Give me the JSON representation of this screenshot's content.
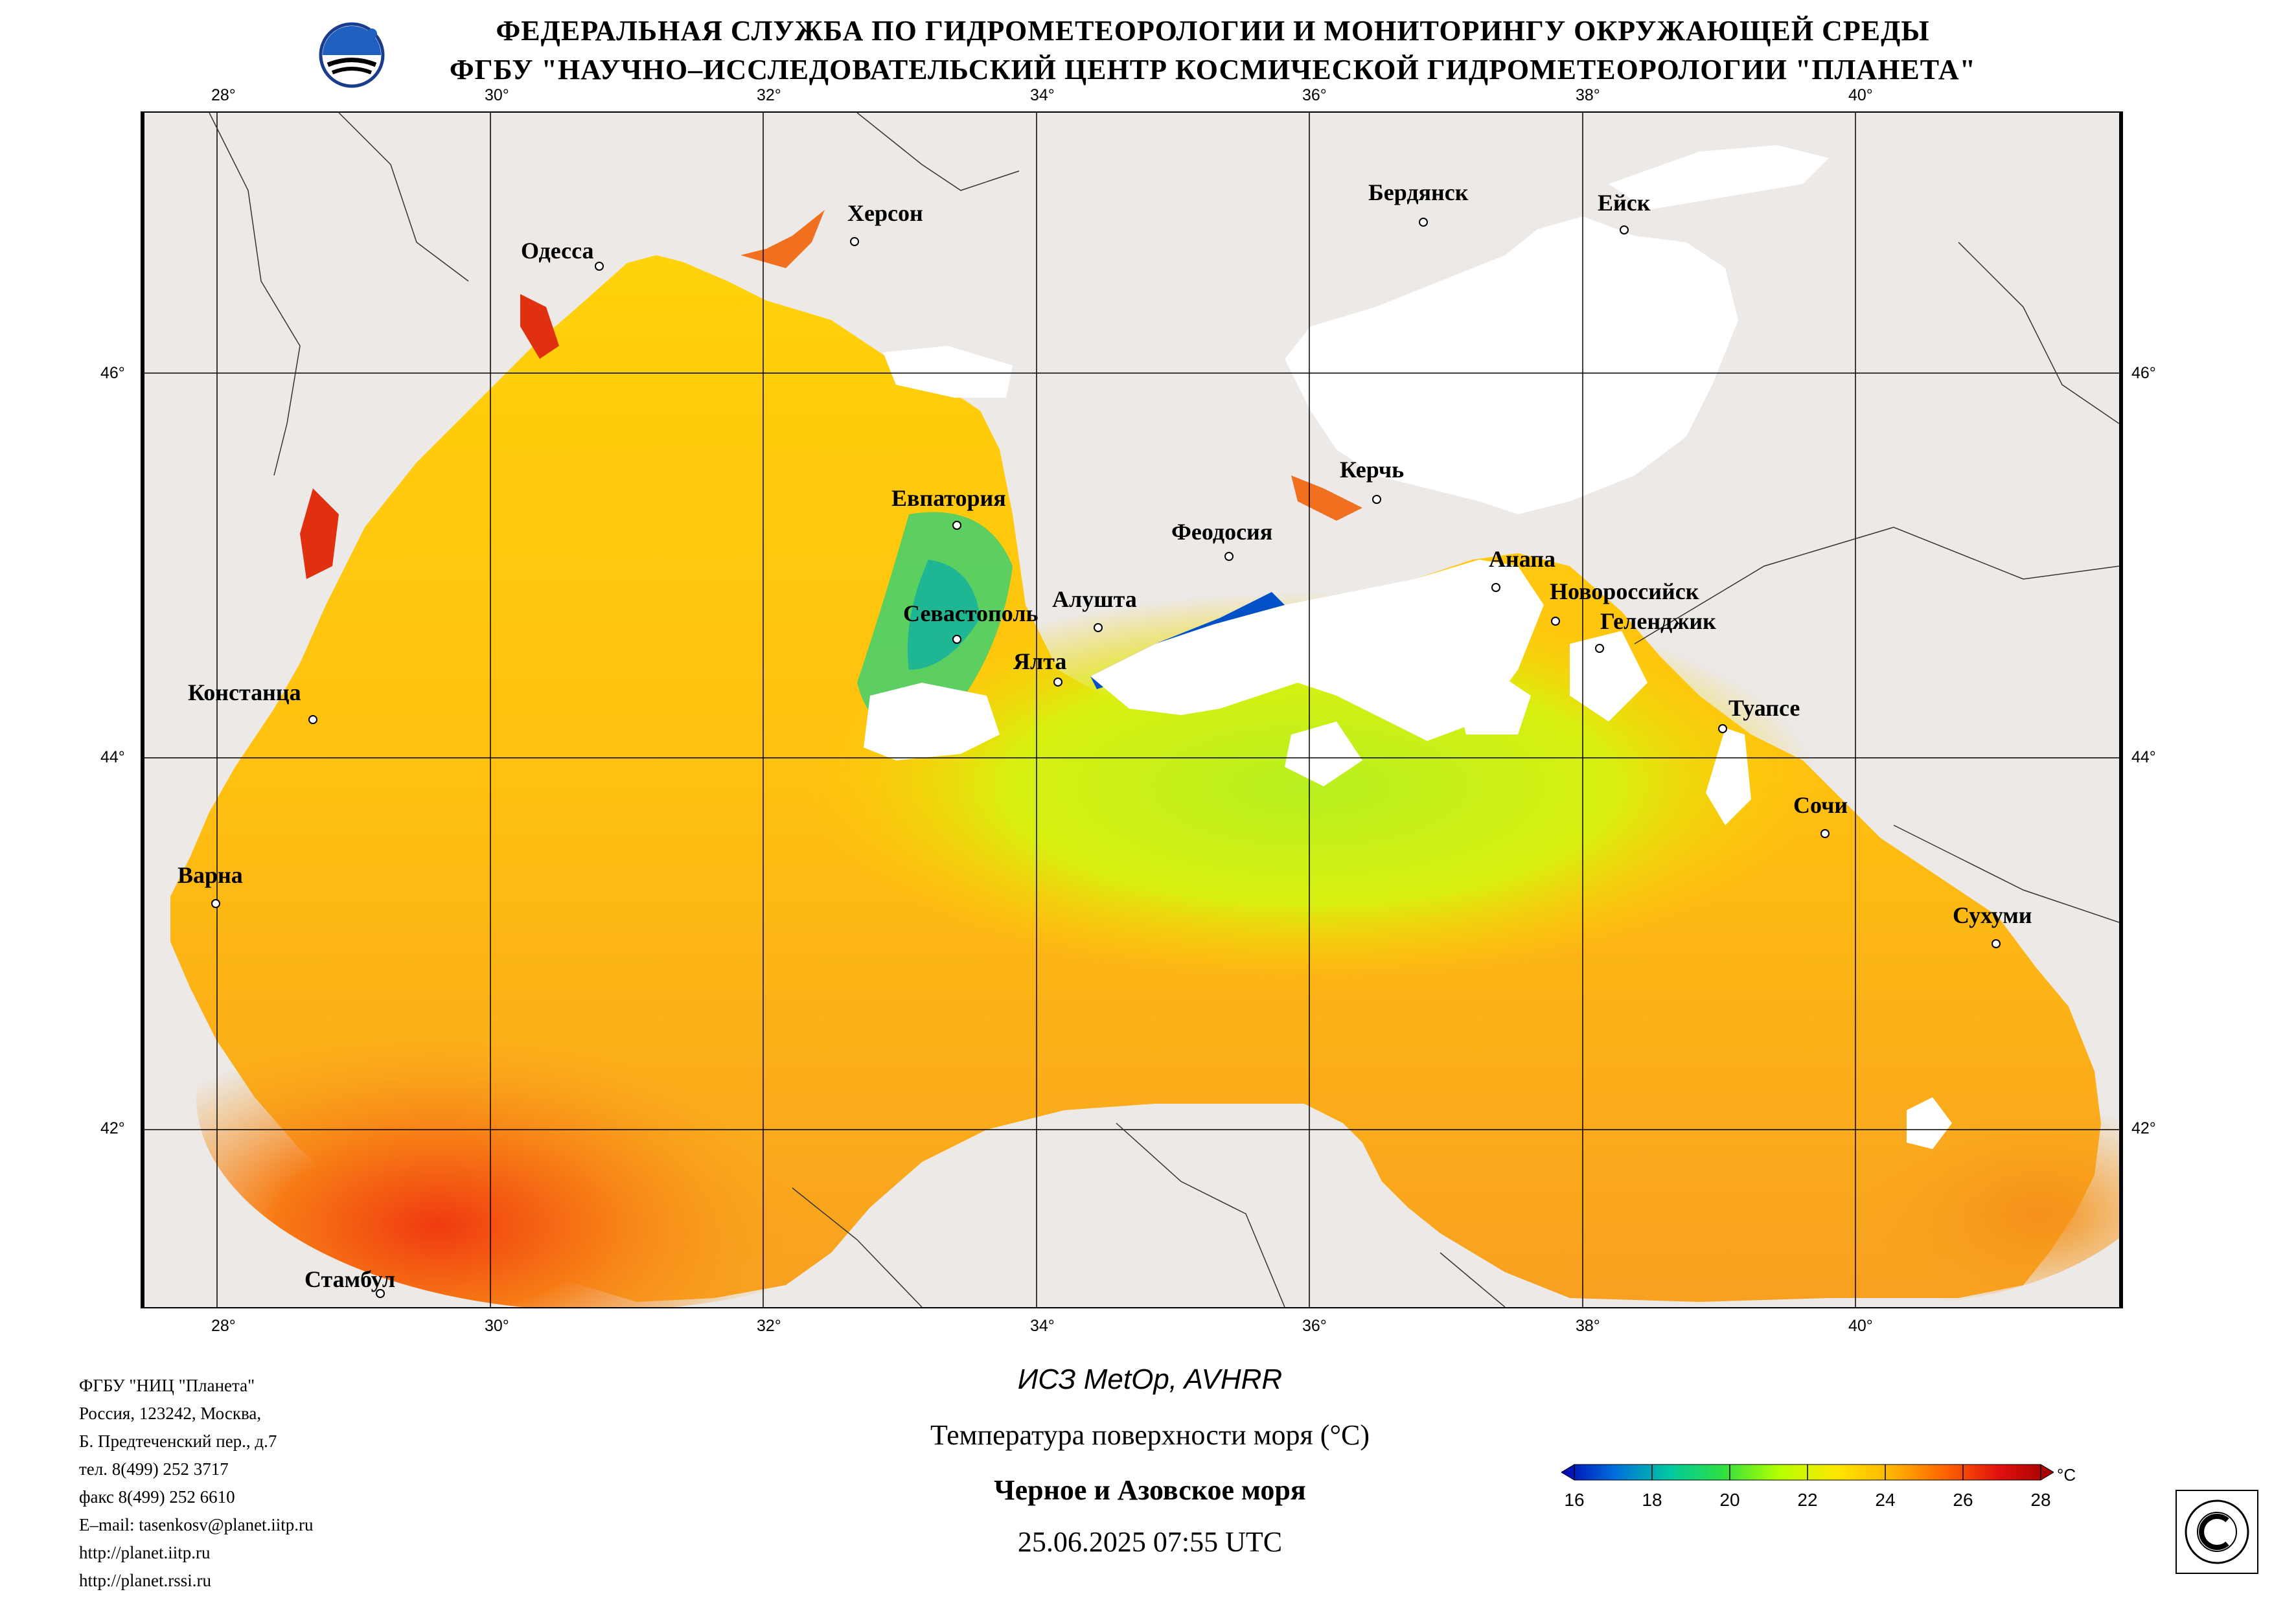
{
  "header": {
    "line1": "ФЕДЕРАЛЬНАЯ СЛУЖБА ПО ГИДРОМЕТЕОРОЛОГИИ И МОНИТОРИНГУ ОКРУЖАЮЩЕЙ СРЕДЫ",
    "line2": "ФГБУ \"НАУЧНО–ИССЛЕДОВАТЕЛЬСКИЙ ЦЕНТР КОСМИЧЕСКОЙ ГИДРОМЕТЕОРОЛОГИИ \"ПЛАНЕТА\""
  },
  "map": {
    "lon_ticks": [
      "28°",
      "30°",
      "32°",
      "34°",
      "36°",
      "38°",
      "40°"
    ],
    "lat_ticks": [
      "46°",
      "44°",
      "42°"
    ],
    "cities": [
      "Одесса",
      "Херсон",
      "Бердянск",
      "Ейск",
      "Евпатория",
      "Керчь",
      "Феодосия",
      "Анапа",
      "Новороссийск",
      "Геленджик",
      "Алушта",
      "Севастополь",
      "Ялта",
      "Констанца",
      "Туапсе",
      "Сочи",
      "Варна",
      "Сухуми",
      "Стамбул"
    ],
    "colors": {
      "land": "#ece9e6",
      "cloud": "#ffffff",
      "sea_warm": "#f5a623",
      "sea_mid": "#ffd700"
    }
  },
  "organization": {
    "lines": [
      "ФГБУ \"НИЦ \"Планета\"",
      "Россия, 123242, Москва,",
      "Б. Предтеченский пер., д.7",
      "тел. 8(499) 252 3717",
      "факс 8(499) 252 6610",
      "E–mail: tasenkosv@planet.iitp.ru",
      "http://planet.iitp.ru",
      "http://planet.rssi.ru"
    ]
  },
  "caption": {
    "satellite": "ИСЗ MetOp, AVHRR",
    "parameter": "Температура поверхности моря (°С)",
    "region": "Черное и Азовское моря",
    "datetime": "25.06.2025 07:55 UTC"
  },
  "colorbar": {
    "unit": "°C",
    "min": 16,
    "max": 28,
    "ticks": [
      "16",
      "18",
      "20",
      "22",
      "24",
      "26",
      "28"
    ],
    "colors": [
      "#0000b4",
      "#0070dc",
      "#00c8a0",
      "#30e040",
      "#b4ff00",
      "#ffe600",
      "#ffb400",
      "#ff6400",
      "#e01010",
      "#a00000"
    ]
  }
}
